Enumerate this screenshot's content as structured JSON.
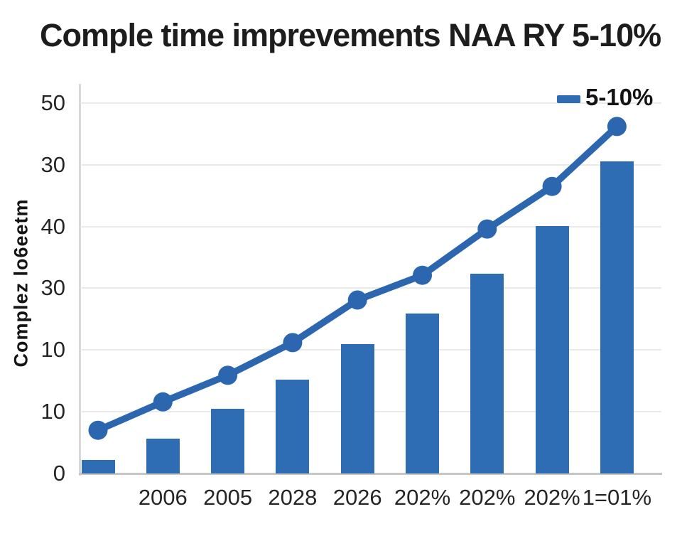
{
  "title": "Comple time imprevements NAA RY 5-10%",
  "y_axis_title": "Complez lo6eetm",
  "legend": {
    "label": "5-10%"
  },
  "colors": {
    "bar": "#2e6cb4",
    "line": "#2b66af",
    "marker": "#2b66af",
    "grid": "#eaeaea",
    "axis": "#c6c6c6",
    "title_text": "#1d1d1d",
    "tick_text": "#252525"
  },
  "chart_data": {
    "type": "bar",
    "title": "Comple time imprevements NAA RY 5-10%",
    "xlabel": "",
    "ylabel": "Complez lo6eetm",
    "categories": [
      "",
      "2006",
      "2005",
      "2028",
      "2026",
      "202%",
      "202%",
      "202%",
      "1=01%"
    ],
    "series": [
      {
        "name": "bars",
        "type": "bar",
        "values": [
          2.2,
          5.6,
          10.5,
          15.2,
          21.0,
          25.9,
          32.4,
          40.1,
          50.6
        ]
      },
      {
        "name": "5-10%",
        "type": "line",
        "values": [
          7.0,
          11.6,
          15.9,
          21.2,
          28.1,
          32.1,
          39.6,
          46.5,
          56.2
        ]
      }
    ],
    "y_tick_labels_top_to_bottom": [
      "50",
      "30",
      "40",
      "30",
      "10",
      "10",
      "0"
    ],
    "y_gridline_values": [
      0,
      10,
      20,
      30,
      40,
      50,
      60
    ],
    "ylim": [
      0,
      63.1
    ],
    "grid": true,
    "legend_position": "top-right"
  }
}
